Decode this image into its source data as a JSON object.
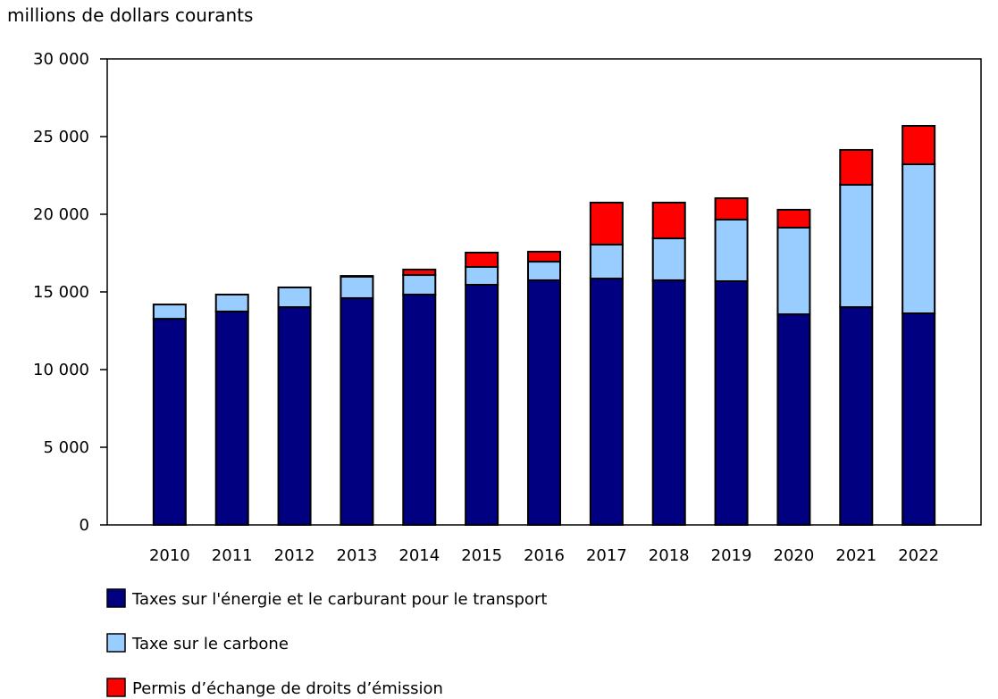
{
  "chart_data": {
    "type": "bar",
    "stacked": true,
    "ylabel": "millions de dollars courants",
    "ylim": [
      0,
      30000
    ],
    "yticks": [
      "0",
      "5 000",
      "10 000",
      "15 000",
      "20 000",
      "25 000",
      "30 000"
    ],
    "ytick_values": [
      0,
      5000,
      10000,
      15000,
      20000,
      25000,
      30000
    ],
    "grid": false,
    "legend_position": "bottom",
    "categories": [
      "2010",
      "2011",
      "2012",
      "2013",
      "2014",
      "2015",
      "2016",
      "2017",
      "2018",
      "2019",
      "2020",
      "2021",
      "2022"
    ],
    "series": [
      {
        "name": "Taxes sur l'énergie et le carburant pour le transport",
        "color": "#000080",
        "values": [
          13270,
          13740,
          14020,
          14600,
          14830,
          15460,
          15750,
          15860,
          15750,
          15690,
          13560,
          14020,
          13620
        ]
      },
      {
        "name": "Taxe sur le carbone",
        "color": "#99CCFF",
        "values": [
          920,
          1090,
          1270,
          1380,
          1260,
          1150,
          1200,
          2190,
          2700,
          3970,
          5580,
          7880,
          9600
        ]
      },
      {
        "name": "Permis d’échange de droits d’émission",
        "color": "#FF0000",
        "values": [
          0,
          0,
          0,
          50,
          350,
          920,
          640,
          2700,
          2300,
          1370,
          1150,
          2240,
          2470
        ]
      }
    ]
  }
}
